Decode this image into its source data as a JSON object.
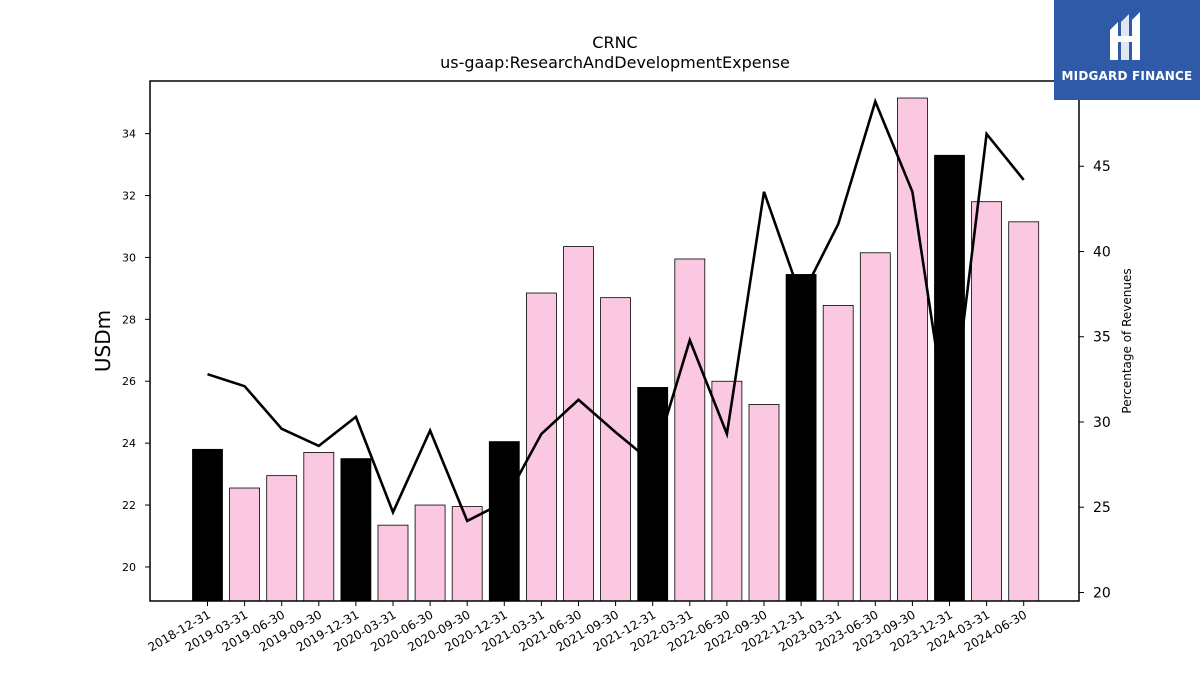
{
  "chart_data": {
    "type": "bar",
    "title": "CRNC",
    "subtitle": "us-gaap:ResearchAndDevelopmentExpense",
    "ylabel": "USDm",
    "y2label": "Percentage of Revenues",
    "ylim": [
      18.9,
      35.7
    ],
    "y2lim": [
      19.5,
      50.0
    ],
    "yticks": [
      20,
      22,
      24,
      26,
      28,
      30,
      32,
      34
    ],
    "y2ticks": [
      20,
      25,
      30,
      35,
      40,
      45
    ],
    "grid": false,
    "categories": [
      "2018-12-31",
      "2019-03-31",
      "2019-06-30",
      "2019-09-30",
      "2019-12-31",
      "2020-03-31",
      "2020-06-30",
      "2020-09-30",
      "2020-12-31",
      "2021-03-31",
      "2021-06-30",
      "2021-09-30",
      "2021-12-31",
      "2022-03-31",
      "2022-06-30",
      "2022-09-30",
      "2022-12-31",
      "2023-03-31",
      "2023-06-30",
      "2023-09-30",
      "2023-12-31",
      "2024-03-31",
      "2024-06-30"
    ],
    "values": [
      23.8,
      22.55,
      22.95,
      23.7,
      23.5,
      21.35,
      22.0,
      21.95,
      24.05,
      28.85,
      30.35,
      28.7,
      25.8,
      29.95,
      26.0,
      25.25,
      29.45,
      28.45,
      30.15,
      35.15,
      33.3,
      31.8,
      31.15
    ],
    "highlight_fiscal_q4": [
      true,
      false,
      false,
      false,
      true,
      false,
      false,
      false,
      true,
      false,
      false,
      false,
      true,
      false,
      false,
      false,
      true,
      false,
      false,
      false,
      true,
      false,
      false
    ],
    "bar_colors": {
      "highlight": "#000000",
      "normal": "#fbc8e2"
    },
    "line_color": "#000000",
    "percentage_of_revenues": [
      32.8,
      32.1,
      29.6,
      28.6,
      30.3,
      24.7,
      29.5,
      24.2,
      25.3,
      29.3,
      31.3,
      29.4,
      27.6,
      34.8,
      29.3,
      43.5,
      37.3,
      41.6,
      48.8,
      43.5,
      29.1,
      46.9,
      44.2
    ]
  },
  "branding": {
    "name": "MIDGARD FINANCE",
    "background": "#2f5aa8",
    "icon": "midgard-logo-icon"
  }
}
